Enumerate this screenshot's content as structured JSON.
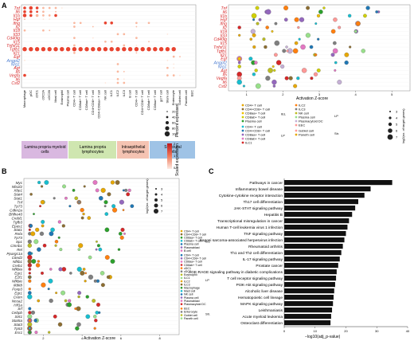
{
  "figure": {
    "panel_a_label": "A",
    "panel_b_label": "B",
    "panel_c_label": "C"
  },
  "panelA": {
    "genes": [
      "Tnf",
      "Il6",
      "Il1b",
      "Hgf",
      "Ifng",
      "Il2",
      "Il18",
      "Il33",
      "Cd40lg",
      "Il15",
      "Tnfsf11",
      "Tgfb1",
      "Il21",
      "Egf",
      "Angpt2",
      "Nrg1",
      "Agt",
      "Il5",
      "Vegfa",
      "Il6",
      "Csf2"
    ],
    "gene_colors": [
      "#d62728",
      "#d62728",
      "#d62728",
      "#d62728",
      "#d62728",
      "#d62728",
      "#d62728",
      "#d62728",
      "#d62728",
      "#d62728",
      "#d62728",
      "#d62728",
      "#d62728",
      "#d62728",
      "#4a7bd0",
      "#4a7bd0",
      "#d62728",
      "#d62728",
      "#d62728",
      "#d62728",
      "#d62728"
    ],
    "cell_types": [
      "Macrophage",
      "pDC",
      "cDC1",
      "cDC2A",
      "cDC2B",
      "Mast cell",
      "Eosinophil",
      "Plasma cell",
      "CD4+ T cell",
      "CD8ab+ T cell",
      "CD8aa+ T cell",
      "CD4+CD8+ T cell",
      "CD4+CD8aa+ T cell",
      "NK cell",
      "ILC1",
      "ILC2",
      "ILC3",
      "B cell",
      "CD4+ T cell",
      "CD4+CD8+ T cell",
      "CD8ab+ T cell",
      "CD8aa+ T cell",
      "gd T cell",
      "Stem cell",
      "Enterocyte",
      "Goblet cell",
      "Paneth cell",
      "EEC"
    ],
    "legend_percent_title": "Percent expressed",
    "legend_percent_values": [
      "20",
      "40",
      "60",
      "80",
      "100"
    ],
    "legend_scaled_title": "Scaled expression",
    "legend_scaled_ticks": [
      "2",
      "1",
      "0"
    ],
    "groups": [
      {
        "label": "Lamina propria myeloid cells",
        "color": "#d9b8e0"
      },
      {
        "label": "Lamina propria lymphocytes",
        "color": "#cfe6b0"
      },
      {
        "label": "Intraepithelial lymphocytes",
        "color": "#f5c3b2"
      },
      {
        "label": "Structural cells",
        "color": "#9fc3e6"
      }
    ],
    "dots": [
      [
        0,
        0,
        4,
        2
      ],
      [
        1,
        0,
        5,
        2
      ],
      [
        2,
        0,
        4,
        2
      ],
      [
        3,
        0,
        3,
        1
      ],
      [
        4,
        0,
        3,
        1
      ],
      [
        5,
        0,
        3,
        1
      ],
      [
        6,
        0,
        2,
        0
      ],
      [
        0,
        1,
        4,
        2
      ],
      [
        1,
        1,
        4,
        2
      ],
      [
        2,
        1,
        3,
        2
      ],
      [
        3,
        1,
        3,
        1
      ],
      [
        5,
        1,
        2,
        1
      ],
      [
        0,
        2,
        5,
        2
      ],
      [
        1,
        2,
        4,
        2
      ],
      [
        2,
        2,
        4,
        1
      ],
      [
        3,
        2,
        3,
        1
      ],
      [
        4,
        2,
        3,
        1
      ],
      [
        5,
        2,
        4,
        2
      ],
      [
        0,
        3,
        2,
        1
      ],
      [
        3,
        3,
        2,
        0
      ],
      [
        4,
        3,
        2,
        0
      ],
      [
        8,
        4,
        3,
        1
      ],
      [
        9,
        4,
        3,
        1
      ],
      [
        13,
        4,
        4,
        2
      ],
      [
        14,
        4,
        4,
        2
      ],
      [
        18,
        4,
        3,
        1
      ],
      [
        20,
        4,
        3,
        1
      ],
      [
        8,
        5,
        3,
        1
      ],
      [
        11,
        5,
        2,
        1
      ],
      [
        18,
        5,
        2,
        1
      ],
      [
        0,
        6,
        3,
        1
      ],
      [
        3,
        6,
        3,
        1
      ],
      [
        4,
        6,
        2,
        1
      ],
      [
        15,
        7,
        3,
        1
      ],
      [
        16,
        7,
        3,
        1
      ],
      [
        23,
        7,
        2,
        0
      ],
      [
        8,
        8,
        3,
        1
      ],
      [
        18,
        8,
        3,
        1
      ],
      [
        11,
        8,
        2,
        0
      ],
      [
        13,
        9,
        3,
        1
      ],
      [
        14,
        9,
        3,
        1
      ],
      [
        20,
        9,
        2,
        1
      ],
      [
        8,
        10,
        3,
        1
      ],
      [
        16,
        10,
        3,
        1
      ],
      [
        18,
        10,
        2,
        0
      ],
      [
        0,
        11,
        6,
        2
      ],
      [
        1,
        11,
        6,
        2
      ],
      [
        2,
        11,
        6,
        2
      ],
      [
        3,
        11,
        6,
        2
      ],
      [
        4,
        11,
        6,
        2
      ],
      [
        5,
        11,
        6,
        2
      ],
      [
        6,
        11,
        6,
        2
      ],
      [
        7,
        11,
        6,
        2
      ],
      [
        8,
        11,
        6,
        2
      ],
      [
        9,
        11,
        6,
        2
      ],
      [
        10,
        11,
        6,
        2
      ],
      [
        11,
        11,
        6,
        2
      ],
      [
        12,
        11,
        6,
        2
      ],
      [
        13,
        11,
        6,
        2
      ],
      [
        14,
        11,
        6,
        2
      ],
      [
        15,
        11,
        6,
        2
      ],
      [
        16,
        11,
        6,
        2
      ],
      [
        17,
        11,
        6,
        2
      ],
      [
        18,
        11,
        6,
        2
      ],
      [
        19,
        11,
        6,
        2
      ],
      [
        20,
        11,
        6,
        2
      ],
      [
        21,
        11,
        6,
        2
      ],
      [
        22,
        11,
        6,
        2
      ],
      [
        23,
        11,
        6,
        2
      ],
      [
        24,
        11,
        6,
        2
      ],
      [
        8,
        12,
        3,
        1
      ],
      [
        18,
        12,
        2,
        1
      ],
      [
        24,
        13,
        3,
        1
      ],
      [
        25,
        13,
        2,
        1
      ],
      [
        0,
        14,
        2,
        0
      ],
      [
        23,
        14,
        2,
        0
      ],
      [
        15,
        15,
        3,
        1
      ],
      [
        24,
        15,
        2,
        0
      ],
      [
        23,
        16,
        3,
        1
      ],
      [
        24,
        16,
        2,
        0
      ],
      [
        15,
        17,
        3,
        1
      ],
      [
        16,
        17,
        2,
        1
      ],
      [
        0,
        18,
        4,
        2
      ],
      [
        23,
        18,
        3,
        1
      ],
      [
        24,
        18,
        3,
        1
      ],
      [
        25,
        18,
        2,
        0
      ],
      [
        15,
        19,
        3,
        1
      ],
      [
        16,
        19,
        2,
        0
      ],
      [
        15,
        20,
        3,
        1
      ],
      [
        16,
        20,
        3,
        1
      ],
      [
        13,
        20,
        2,
        0
      ]
    ]
  },
  "panelA2": {
    "xlabel": "Activation Z-score",
    "xticks": [
      "1",
      "2",
      "3",
      "4",
      "5"
    ],
    "genes": [
      "Tnf",
      "Il6",
      "Il1b",
      "Hgf",
      "Ifng",
      "Il2",
      "Il18",
      "Il33",
      "Cd40lg",
      "Il15",
      "Tnfsf11",
      "Tgfb1",
      "Il21",
      "Egf",
      "Angpt2",
      "Nrg1",
      "Agt",
      "Il5",
      "Vegfa",
      "Il6",
      "Csf2"
    ],
    "legend_title": "log2(no. of target genes)",
    "legend_sizes": [
      "3",
      "4",
      "5",
      "6",
      "7"
    ],
    "legend_groups": [
      {
        "abbr": "IEL",
        "items": [
          "CD4+ T cell",
          "CD4+CD8+ T cell",
          "CD8aa+ T cell",
          "CD8ab+ T cell",
          "Plasma cell"
        ]
      },
      {
        "abbr": "LP",
        "items": [
          "CD4+ T cell",
          "CD4+CD8+ T cell",
          "CD8aa+ T cell",
          "CD8ab+ T cell",
          "ILC1"
        ]
      },
      {
        "abbr": "LP",
        "items": [
          "ILC2",
          "ILC3",
          "NK cell",
          "Plasma cell",
          "Plasmacytoid DC",
          "EEC"
        ]
      },
      {
        "abbr": "Str.",
        "items": [
          "Goblet cell",
          "Paneth cell"
        ]
      }
    ],
    "legend_colors": [
      "#e6a700",
      "#8c6d31",
      "#f0c000",
      "#cfcf00",
      "#2ca02c",
      "#17becf",
      "#1f77b4",
      "#9467bd",
      "#e377c2",
      "#d62728",
      "#ff7f0e",
      "#7f7f7f",
      "#bcbd22",
      "#98df8a",
      "#c5b0d5",
      "#ff9896"
    ]
  },
  "panelB": {
    "genes": [
      "Myc",
      "Nfe2l2",
      "Xbp1",
      "Stat4",
      "Stat1",
      "Tnf",
      "Tp73",
      "Cdkn2a",
      "Bhlhe40",
      "Crebl1",
      "Tgfb3",
      "Epas1",
      "Stat1",
      "Rela",
      "Tp73",
      "Sp1",
      "Ctnnb1",
      "Rel",
      "Ppargc1a",
      "Cited2",
      "Nfkb1",
      "Creb1",
      "Nfkbia",
      "Egr1",
      "E2f1",
      "Nfkbie",
      "Ikbkb",
      "Foxp3",
      "Egr1",
      "Crem",
      "Ncoa2",
      "Hif1a",
      "Srf",
      "Cebpb",
      "Sirt1",
      "Stat5a",
      "Stat3",
      "Tp53",
      "Esr1"
    ],
    "xlabel": "Activation Z-score",
    "xticks": [
      "2",
      "4",
      "6",
      "8"
    ],
    "legend_title": "log2(no. of target genes)",
    "legend_sizes": [
      "3",
      "4",
      "5",
      "6",
      "7"
    ],
    "legend_groups": [
      {
        "abbr": "IEL",
        "items": [
          "CD4+ T cell",
          "CD4+CD8+ T cell",
          "CD8aa+ T cell",
          "CD8ab+ T cell",
          "Plasma cell",
          "Plasmablast",
          "B cell"
        ]
      },
      {
        "abbr": "LP",
        "items": [
          "CD4+ T cell",
          "CD4+CD8+ T cell",
          "CD8aa+ T cell",
          "CD8ab+ T cell",
          "cDC1",
          "cDC2",
          "Eosinophil",
          "ILC1",
          "ILC2",
          "ILC3",
          "Macrophage",
          "Mast cell",
          "NK cell",
          "Plasma cell",
          "Plasmablast",
          "Plasmacytoid DC"
        ]
      },
      {
        "abbr": "Str.",
        "items": [
          "EEC",
          "Enterocyte",
          "Goblet cell",
          "Paneth cell"
        ]
      }
    ]
  },
  "panelC": {
    "xlabel": "−log10(adj_p-value)",
    "xticks": [
      "0",
      "10",
      "20",
      "30",
      "40"
    ],
    "chart_data": {
      "type": "bar",
      "categories": [
        "Pathways in cancer",
        "Inflammatory bowel disease",
        "Cytokine-cytokine receptor interaction",
        "Th17 cell differentiation",
        "JAK-STAT signaling pathway",
        "Hepatitis B",
        "Transcriptional misregulation in cancer",
        "Human T-cell leukemia virus 1 infection",
        "TNF signaling pathway",
        "Kaposi sarcoma-associated herpesvirus infection",
        "Rheumatoid arthritis",
        "Th1 and Th2 cell differentiation",
        "IL-17 signaling pathway",
        "Prostate cancer",
        "AGE-RAGE signaling pathway in diabetic complications",
        "T cell receptor signaling pathway",
        "PI3K-Akt signaling pathway",
        "Alcoholic liver disease",
        "Hematopoietic cell lineage",
        "MAPK signaling pathway",
        "Leishmaniasis",
        "Acute myeloid leukemia",
        "Osteoclast differentiation"
      ],
      "values": [
        35,
        28,
        26,
        24,
        23,
        22,
        21,
        20.5,
        20,
        19.5,
        19,
        18.5,
        18,
        17.5,
        17,
        16.8,
        16.5,
        16.2,
        16,
        15.8,
        15.5,
        15.2,
        15
      ],
      "xlabel": "−log10(adj_p-value)",
      "xlim": [
        0,
        40
      ]
    }
  }
}
